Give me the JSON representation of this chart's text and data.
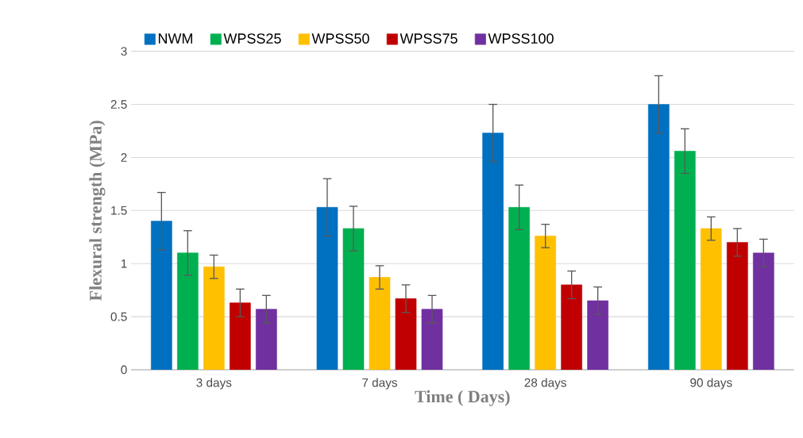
{
  "chart_data": {
    "type": "bar",
    "xlabel": "Time ( Days)",
    "ylabel": "Flexural strength (MPa)",
    "categories": [
      "3 days",
      "7 days",
      "28 days",
      "90 days"
    ],
    "series": [
      {
        "name": "NWM",
        "color": "#0070c0",
        "values": [
          1.4,
          1.53,
          2.23,
          2.5
        ],
        "errors": [
          0.27,
          0.27,
          0.27,
          0.27
        ]
      },
      {
        "name": "WPSS25",
        "color": "#00b050",
        "values": [
          1.1,
          1.33,
          1.53,
          2.06
        ],
        "errors": [
          0.21,
          0.21,
          0.21,
          0.21
        ]
      },
      {
        "name": "WPSS50",
        "color": "#ffc000",
        "values": [
          0.97,
          0.87,
          1.26,
          1.33
        ],
        "errors": [
          0.11,
          0.11,
          0.11,
          0.11
        ]
      },
      {
        "name": "WPSS75",
        "color": "#c00000",
        "values": [
          0.63,
          0.67,
          0.8,
          1.2
        ],
        "errors": [
          0.13,
          0.13,
          0.13,
          0.13
        ]
      },
      {
        "name": "WPSS100",
        "color": "#7030a0",
        "values": [
          0.57,
          0.57,
          0.65,
          1.1
        ],
        "errors": [
          0.13,
          0.13,
          0.13,
          0.13
        ]
      }
    ],
    "ylim": [
      0,
      3
    ],
    "yticks": [
      0,
      0.5,
      1,
      1.5,
      2,
      2.5,
      3
    ],
    "grid": "y",
    "legend": "top left"
  }
}
